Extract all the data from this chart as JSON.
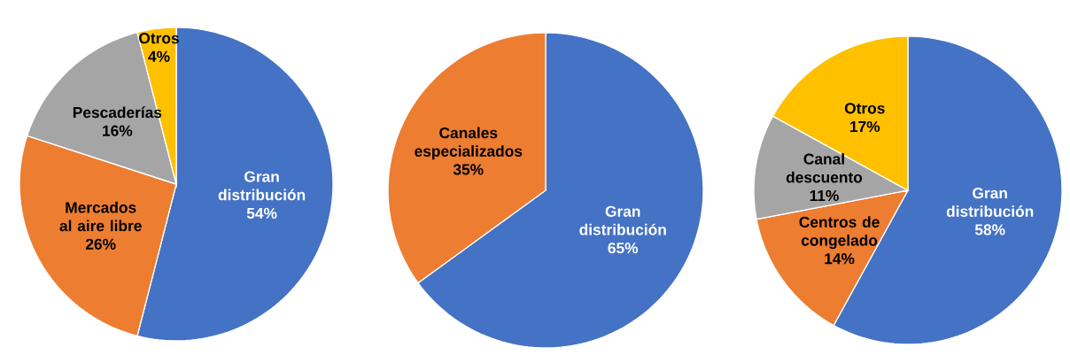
{
  "chart_data": [
    {
      "type": "pie",
      "categories": [
        "Gran distribución",
        "Mercados al aire libre",
        "Pescaderías",
        "Otros"
      ],
      "values": [
        54,
        26,
        16,
        4
      ],
      "colors": [
        "#4472c4",
        "#ed7d31",
        "#a5a5a5",
        "#ffc000"
      ],
      "value_labels": [
        "54%",
        "26%",
        "16%",
        "4%"
      ]
    },
    {
      "type": "pie",
      "categories": [
        "Gran distribución",
        "Canales especializados"
      ],
      "values": [
        65,
        35
      ],
      "colors": [
        "#4472c4",
        "#ed7d31"
      ],
      "value_labels": [
        "65%",
        "35%"
      ]
    },
    {
      "type": "pie",
      "categories": [
        "Gran distribución",
        "Centros de congelado",
        "Canal descuento",
        "Otros"
      ],
      "values": [
        58,
        14,
        11,
        17
      ],
      "colors": [
        "#4472c4",
        "#ed7d31",
        "#a5a5a5",
        "#ffc000"
      ],
      "value_labels": [
        "58%",
        "14%",
        "11%",
        "17%"
      ]
    }
  ]
}
